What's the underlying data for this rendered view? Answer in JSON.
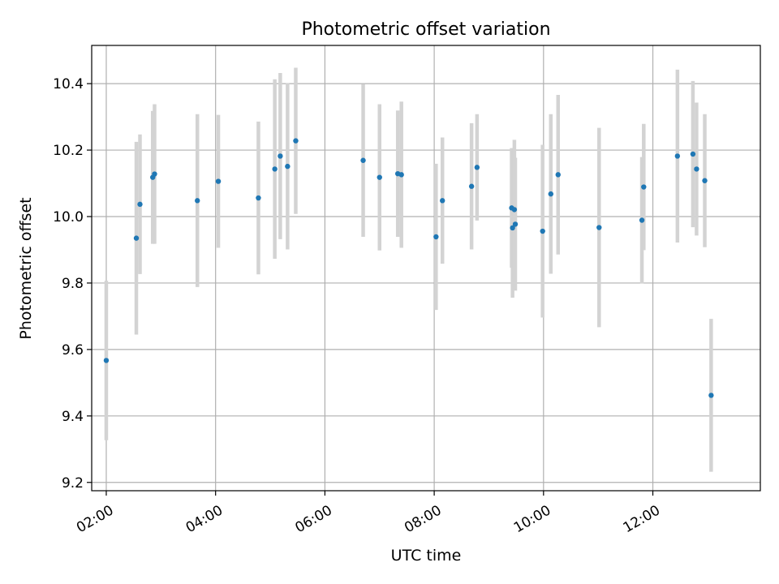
{
  "chart_data": {
    "type": "scatter",
    "title": "Photometric offset variation",
    "xlabel": "UTC time",
    "ylabel": "Photometric offset",
    "x_axis_kind": "time",
    "xlim": [
      "01:44",
      "13:58"
    ],
    "ylim": [
      9.175,
      10.515
    ],
    "grid": true,
    "x_ticks": [
      "02:00",
      "04:00",
      "06:00",
      "08:00",
      "10:00",
      "12:00"
    ],
    "y_ticks": [
      9.2,
      9.4,
      9.6,
      9.8,
      10.0,
      10.2,
      10.4
    ],
    "colors": {
      "point": "#1f77b4",
      "errorbar": "#d3d3d3",
      "grid": "#b0b0b0"
    },
    "series": [
      {
        "points": [
          {
            "x": "02:00",
            "y": 9.567,
            "yerr": 0.24
          },
          {
            "x": "02:33",
            "y": 9.935,
            "yerr": 0.29
          },
          {
            "x": "02:37",
            "y": 10.037,
            "yerr": 0.21
          },
          {
            "x": "02:51",
            "y": 10.118,
            "yerr": 0.2
          },
          {
            "x": "02:53",
            "y": 10.128,
            "yerr": 0.21
          },
          {
            "x": "03:40",
            "y": 10.048,
            "yerr": 0.26
          },
          {
            "x": "04:03",
            "y": 10.106,
            "yerr": 0.2
          },
          {
            "x": "04:47",
            "y": 10.056,
            "yerr": 0.23
          },
          {
            "x": "05:05",
            "y": 10.143,
            "yerr": 0.27
          },
          {
            "x": "05:11",
            "y": 10.182,
            "yerr": 0.25
          },
          {
            "x": "05:19",
            "y": 10.151,
            "yerr": 0.25
          },
          {
            "x": "05:28",
            "y": 10.228,
            "yerr": 0.22
          },
          {
            "x": "06:42",
            "y": 10.169,
            "yerr": 0.23
          },
          {
            "x": "07:00",
            "y": 10.118,
            "yerr": 0.22
          },
          {
            "x": "07:20",
            "y": 10.129,
            "yerr": 0.19
          },
          {
            "x": "07:24",
            "y": 10.126,
            "yerr": 0.22
          },
          {
            "x": "08:02",
            "y": 9.939,
            "yerr": 0.22
          },
          {
            "x": "08:09",
            "y": 10.048,
            "yerr": 0.19
          },
          {
            "x": "08:41",
            "y": 10.091,
            "yerr": 0.19
          },
          {
            "x": "08:47",
            "y": 10.148,
            "yerr": 0.16
          },
          {
            "x": "09:25",
            "y": 10.026,
            "yerr": 0.18
          },
          {
            "x": "09:26",
            "y": 9.966,
            "yerr": 0.21
          },
          {
            "x": "09:28",
            "y": 10.021,
            "yerr": 0.21
          },
          {
            "x": "09:29",
            "y": 9.977,
            "yerr": 0.2
          },
          {
            "x": "09:59",
            "y": 9.956,
            "yerr": 0.26
          },
          {
            "x": "10:08",
            "y": 10.068,
            "yerr": 0.24
          },
          {
            "x": "10:16",
            "y": 10.126,
            "yerr": 0.24
          },
          {
            "x": "11:01",
            "y": 9.967,
            "yerr": 0.3
          },
          {
            "x": "11:48",
            "y": 9.989,
            "yerr": 0.19
          },
          {
            "x": "11:50",
            "y": 10.089,
            "yerr": 0.19
          },
          {
            "x": "12:27",
            "y": 10.182,
            "yerr": 0.26
          },
          {
            "x": "12:44",
            "y": 10.188,
            "yerr": 0.22
          },
          {
            "x": "12:48",
            "y": 10.143,
            "yerr": 0.2
          },
          {
            "x": "12:57",
            "y": 10.108,
            "yerr": 0.2
          },
          {
            "x": "13:04",
            "y": 9.462,
            "yerr": 0.23
          }
        ]
      }
    ]
  }
}
